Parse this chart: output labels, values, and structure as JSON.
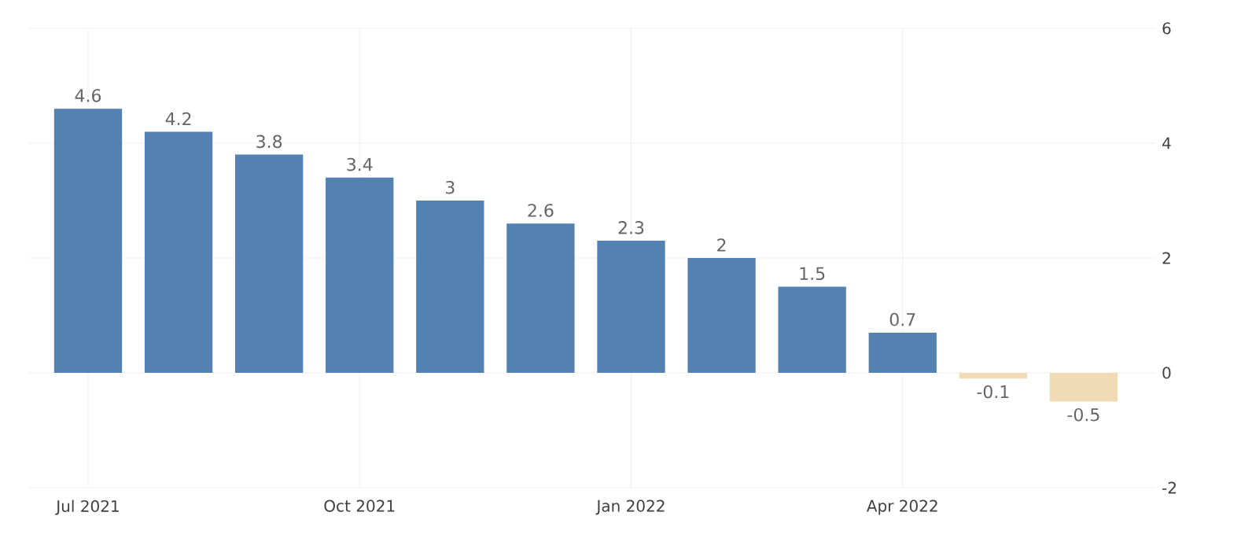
{
  "chart_data": {
    "type": "bar",
    "categories": [
      "Jul 2021",
      null,
      null,
      "Oct 2021",
      null,
      null,
      "Jan 2022",
      null,
      null,
      "Apr 2022",
      null,
      null
    ],
    "values": [
      4.6,
      4.2,
      3.8,
      3.4,
      3,
      2.6,
      2.3,
      2,
      1.5,
      0.7,
      -0.1,
      -0.5
    ],
    "value_labels": [
      "4.6",
      "4.2",
      "3.8",
      "3.4",
      "3",
      "2.6",
      "2.3",
      "2",
      "1.5",
      "0.7",
      "-0.1",
      "-0.5"
    ],
    "colors": [
      "#5381b1",
      "#5381b1",
      "#5381b1",
      "#5381b1",
      "#5381b1",
      "#5381b1",
      "#5381b1",
      "#5381b1",
      "#5381b1",
      "#5381b1",
      "#f0dbb4",
      "#f0dbb4"
    ],
    "ylim": [
      -2,
      6
    ],
    "yticks": [
      -2,
      0,
      2,
      4,
      6
    ],
    "grid": true
  }
}
